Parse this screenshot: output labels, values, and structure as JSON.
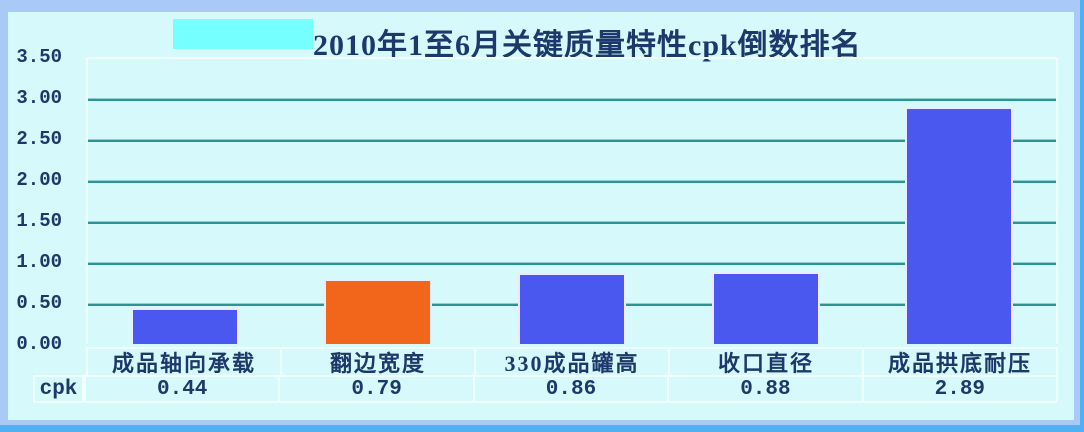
{
  "chart_data": {
    "type": "bar",
    "title": "2010年1至6月关键质量特性cpk倒数排名",
    "categories": [
      "成品轴向承载",
      "翻边宽度",
      "330成品罐高",
      "收口直径",
      "成品拱底耐压"
    ],
    "series": [
      {
        "name": "cpk",
        "values": [
          0.44,
          0.79,
          0.86,
          0.88,
          2.89
        ]
      }
    ],
    "value_labels": [
      "0.44",
      "0.79",
      "0.86",
      "0.88",
      "2.89"
    ],
    "data_table_row_label": "cpk",
    "ylim": [
      0,
      3.5
    ],
    "ytick_step": 0.5,
    "yticks": [
      "3.50",
      "3.00",
      "2.50",
      "2.00",
      "1.50",
      "1.00",
      "0.50",
      "0.00"
    ],
    "grid": true,
    "legend_position": "none",
    "bar_colors": [
      "#4A58F0",
      "#F2661C",
      "#4A58F0",
      "#4A58F0",
      "#4A58F0"
    ]
  },
  "colors": {
    "background": "#D6FAFB",
    "frame_light": "#A9CAF6",
    "frame_accent": "#4FB1F4",
    "grid_line": "#2E9393",
    "text": "#1B3A6B",
    "bar_blue": "#4A58F0",
    "bar_orange": "#F2661C",
    "highlight_rect": "#76FFFF",
    "table_border": "#F2FFFF"
  }
}
